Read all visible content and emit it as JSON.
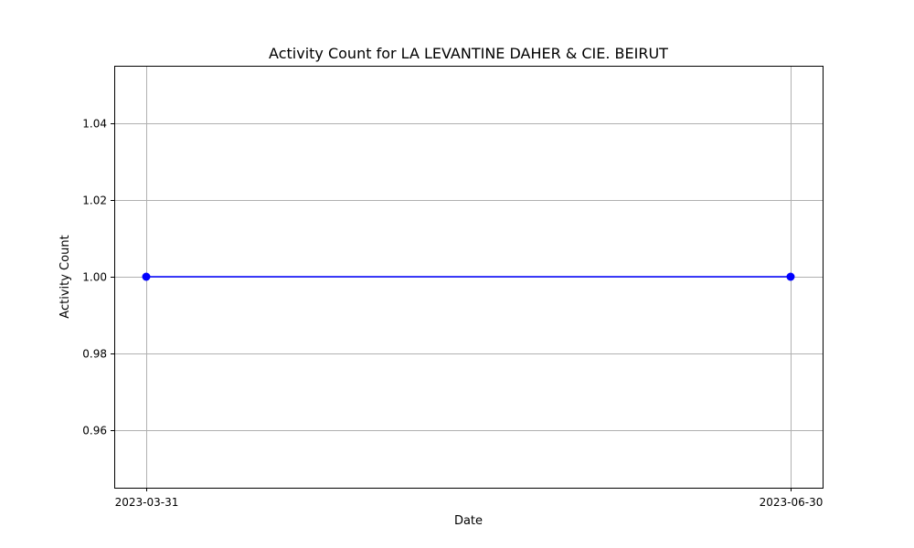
{
  "chart_data": {
    "type": "line",
    "title": "Activity Count for LA LEVANTINE DAHER & CIE. BEIRUT",
    "xlabel": "Date",
    "ylabel": "Activity Count",
    "x": [
      "2023-03-31",
      "2023-06-30"
    ],
    "series": [
      {
        "values": [
          1.0,
          1.0
        ],
        "color": "#0000ff",
        "marker": "circle"
      }
    ],
    "x_tick_labels": [
      "2023-03-31",
      "2023-06-30"
    ],
    "y_ticks": [
      0.96,
      0.98,
      1.0,
      1.02,
      1.04
    ],
    "y_tick_labels": [
      "0.96",
      "0.98",
      "1.00",
      "1.02",
      "1.04"
    ],
    "ylim": [
      0.945,
      1.055
    ],
    "grid": true
  }
}
